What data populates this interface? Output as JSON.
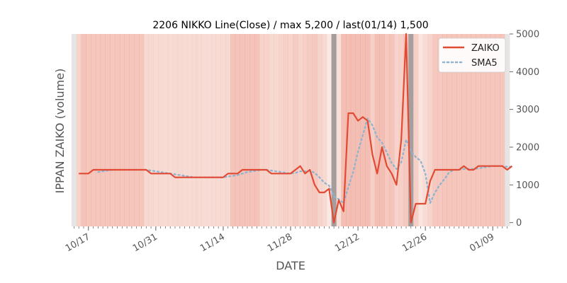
{
  "chart_data": {
    "type": "line",
    "title": "2206 NIKKO Line(Close) / max 5,200 / last(01/14) 1,500",
    "xlabel": "DATE",
    "ylabel": "IPPAN ZAIKO (volume)",
    "ylim": [
      -100,
      5000
    ],
    "y_ticks": [
      0,
      1000,
      2000,
      3000,
      4000,
      5000
    ],
    "y_axis_side": "right",
    "x_ticks": [
      "10/17",
      "10/31",
      "11/14",
      "11/28",
      "12/12",
      "12/26",
      "01/09"
    ],
    "legend_position": "top-right",
    "grid": false,
    "colors": {
      "zaiko": "#e24a33",
      "sma5": "#8eb4cf",
      "band": "#e24a33",
      "marker": "#888888",
      "edge": "#e5e5e5"
    },
    "series": [
      {
        "name": "ZAIKO",
        "style": "solid",
        "points": [
          [
            "10/15",
            1300
          ],
          [
            "10/16",
            1300
          ],
          [
            "10/17",
            1300
          ],
          [
            "10/18",
            1400
          ],
          [
            "10/19",
            1400
          ],
          [
            "10/20",
            1400
          ],
          [
            "10/21",
            1400
          ],
          [
            "10/22",
            1400
          ],
          [
            "10/23",
            1400
          ],
          [
            "10/24",
            1400
          ],
          [
            "10/25",
            1400
          ],
          [
            "10/26",
            1400
          ],
          [
            "10/27",
            1400
          ],
          [
            "10/28",
            1400
          ],
          [
            "10/29",
            1400
          ],
          [
            "10/30",
            1300
          ],
          [
            "10/31",
            1300
          ],
          [
            "11/01",
            1300
          ],
          [
            "11/02",
            1300
          ],
          [
            "11/03",
            1300
          ],
          [
            "11/04",
            1200
          ],
          [
            "11/05",
            1200
          ],
          [
            "11/06",
            1200
          ],
          [
            "11/07",
            1200
          ],
          [
            "11/08",
            1200
          ],
          [
            "11/09",
            1200
          ],
          [
            "11/10",
            1200
          ],
          [
            "11/11",
            1200
          ],
          [
            "11/12",
            1200
          ],
          [
            "11/13",
            1200
          ],
          [
            "11/14",
            1200
          ],
          [
            "11/15",
            1300
          ],
          [
            "11/16",
            1300
          ],
          [
            "11/17",
            1300
          ],
          [
            "11/18",
            1400
          ],
          [
            "11/19",
            1400
          ],
          [
            "11/20",
            1400
          ],
          [
            "11/21",
            1400
          ],
          [
            "11/22",
            1400
          ],
          [
            "11/23",
            1400
          ],
          [
            "11/24",
            1300
          ],
          [
            "11/25",
            1300
          ],
          [
            "11/26",
            1300
          ],
          [
            "11/27",
            1300
          ],
          [
            "11/28",
            1300
          ],
          [
            "11/29",
            1400
          ],
          [
            "11/30",
            1500
          ],
          [
            "12/01",
            1300
          ],
          [
            "12/02",
            1400
          ],
          [
            "12/03",
            1000
          ],
          [
            "12/04",
            800
          ],
          [
            "12/05",
            800
          ],
          [
            "12/06",
            900
          ],
          [
            "12/07",
            0
          ],
          [
            "12/08",
            600
          ],
          [
            "12/09",
            300
          ],
          [
            "12/10",
            2900
          ],
          [
            "12/11",
            2900
          ],
          [
            "12/12",
            2700
          ],
          [
            "12/13",
            2800
          ],
          [
            "12/14",
            2700
          ],
          [
            "12/15",
            1800
          ],
          [
            "12/16",
            1300
          ],
          [
            "12/17",
            2000
          ],
          [
            "12/18",
            1500
          ],
          [
            "12/19",
            1300
          ],
          [
            "12/20",
            1000
          ],
          [
            "12/21",
            2200
          ],
          [
            "12/22",
            5000
          ],
          [
            "12/23",
            0
          ],
          [
            "12/24",
            500
          ],
          [
            "12/25",
            500
          ],
          [
            "12/26",
            500
          ],
          [
            "12/27",
            1100
          ],
          [
            "12/28",
            1400
          ],
          [
            "12/29",
            1400
          ],
          [
            "12/30",
            1400
          ],
          [
            "12/31",
            1400
          ],
          [
            "01/01",
            1400
          ],
          [
            "01/02",
            1400
          ],
          [
            "01/03",
            1500
          ],
          [
            "01/04",
            1400
          ],
          [
            "01/05",
            1400
          ],
          [
            "01/06",
            1500
          ],
          [
            "01/07",
            1500
          ],
          [
            "01/08",
            1500
          ],
          [
            "01/09",
            1500
          ],
          [
            "01/10",
            1500
          ],
          [
            "01/11",
            1500
          ],
          [
            "01/12",
            1400
          ],
          [
            "01/13",
            1500
          ]
        ]
      },
      {
        "name": "SMA5",
        "style": "dotted",
        "points": [
          [
            "10/19",
            1340
          ],
          [
            "10/20",
            1360
          ],
          [
            "10/21",
            1380
          ],
          [
            "10/22",
            1400
          ],
          [
            "10/23",
            1400
          ],
          [
            "10/24",
            1400
          ],
          [
            "10/25",
            1400
          ],
          [
            "10/26",
            1400
          ],
          [
            "10/27",
            1400
          ],
          [
            "10/28",
            1400
          ],
          [
            "10/29",
            1400
          ],
          [
            "10/30",
            1380
          ],
          [
            "10/31",
            1360
          ],
          [
            "11/01",
            1340
          ],
          [
            "11/02",
            1320
          ],
          [
            "11/03",
            1300
          ],
          [
            "11/04",
            1280
          ],
          [
            "11/05",
            1260
          ],
          [
            "11/06",
            1240
          ],
          [
            "11/07",
            1220
          ],
          [
            "11/08",
            1200
          ],
          [
            "11/09",
            1200
          ],
          [
            "11/10",
            1200
          ],
          [
            "11/11",
            1200
          ],
          [
            "11/12",
            1200
          ],
          [
            "11/13",
            1200
          ],
          [
            "11/14",
            1200
          ],
          [
            "11/15",
            1220
          ],
          [
            "11/16",
            1240
          ],
          [
            "11/17",
            1260
          ],
          [
            "11/18",
            1300
          ],
          [
            "11/19",
            1340
          ],
          [
            "11/20",
            1360
          ],
          [
            "11/21",
            1380
          ],
          [
            "11/22",
            1400
          ],
          [
            "11/23",
            1400
          ],
          [
            "11/24",
            1380
          ],
          [
            "11/25",
            1360
          ],
          [
            "11/26",
            1340
          ],
          [
            "11/27",
            1320
          ],
          [
            "11/28",
            1300
          ],
          [
            "11/29",
            1320
          ],
          [
            "11/30",
            1360
          ],
          [
            "12/01",
            1360
          ],
          [
            "12/02",
            1380
          ],
          [
            "12/03",
            1320
          ],
          [
            "12/04",
            1200
          ],
          [
            "12/05",
            1060
          ],
          [
            "12/06",
            980
          ],
          [
            "12/07",
            700
          ],
          [
            "12/08",
            620
          ],
          [
            "12/09",
            520
          ],
          [
            "12/10",
            940
          ],
          [
            "12/11",
            1340
          ],
          [
            "12/12",
            1880
          ],
          [
            "12/13",
            2320
          ],
          [
            "12/14",
            2760
          ],
          [
            "12/15",
            2580
          ],
          [
            "12/16",
            2260
          ],
          [
            "12/17",
            2120
          ],
          [
            "12/18",
            1860
          ],
          [
            "12/19",
            1580
          ],
          [
            "12/20",
            1420
          ],
          [
            "12/21",
            1600
          ],
          [
            "12/22",
            2200
          ],
          [
            "12/23",
            1900
          ],
          [
            "12/24",
            1740
          ],
          [
            "12/25",
            1640
          ],
          [
            "12/26",
            1300
          ],
          [
            "12/27",
            520
          ],
          [
            "12/28",
            800
          ],
          [
            "12/29",
            1000
          ],
          [
            "12/30",
            1160
          ],
          [
            "12/31",
            1340
          ],
          [
            "01/01",
            1400
          ],
          [
            "01/02",
            1400
          ],
          [
            "01/03",
            1420
          ],
          [
            "01/04",
            1420
          ],
          [
            "01/05",
            1420
          ],
          [
            "01/06",
            1440
          ],
          [
            "01/07",
            1460
          ],
          [
            "01/08",
            1480
          ],
          [
            "01/09",
            1500
          ],
          [
            "01/10",
            1500
          ],
          [
            "01/11",
            1500
          ],
          [
            "01/12",
            1480
          ],
          [
            "01/13",
            1480
          ]
        ]
      }
    ],
    "background_bands": [
      0.4,
      0.5,
      0.9,
      0.85,
      0.85,
      0.85,
      0.85,
      0.85,
      0.85,
      0.85,
      0.85,
      0.85,
      0.85,
      0.85,
      0.85,
      0.4,
      0.4,
      0.35,
      0.35,
      0.3,
      0.3,
      0.35,
      0.35,
      0.3,
      0.3,
      0.35,
      0.35,
      0.3,
      0.3,
      0.35,
      0.35,
      0.35,
      0.4,
      0.9,
      0.9,
      0.9,
      0.9,
      0.9,
      0.9,
      0.5,
      0.5,
      0.4,
      0.4,
      0.5,
      0.6,
      0.5,
      0.7,
      0.5,
      0.6,
      0.7,
      0.8,
      0.5,
      0.4,
      0.0,
      0.3,
      0.2,
      1.0,
      1.0,
      1.0,
      1.0,
      1.0,
      1.0,
      0.6,
      1.0,
      1.0,
      0.8,
      0.9,
      0.5,
      0.6,
      0.8,
      0.0,
      0.6,
      0.1,
      0.3,
      0.5,
      0.8,
      0.8,
      0.85,
      0.85,
      0.85,
      0.85,
      0.85,
      0.85,
      0.85,
      0.85,
      0.85,
      0.85,
      0.85,
      0.85,
      0.85,
      0.85
    ],
    "event_markers": [
      "12/07",
      "12/23"
    ]
  }
}
